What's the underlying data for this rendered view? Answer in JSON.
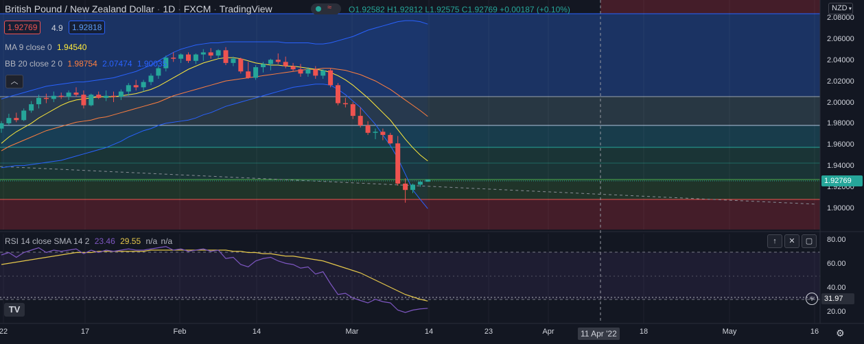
{
  "header": {
    "symbol": "British Pound / New Zealand Dollar",
    "interval": "1D",
    "exchange": "FXCM",
    "source": "TradingView",
    "ohlc": "O1.92582 H1.92812 L1.92575 C1.92769 +0.00187 (+0.10%)",
    "bid": "1.92769",
    "spread": "4.9",
    "ask": "1.92818",
    "ma_label": "MA 9 close 0",
    "ma_value": "1.94540",
    "bb_label": "BB 20 close 2 0",
    "bb_basis": "1.98754",
    "bb_upper": "2.07474",
    "bb_lower": "1.90035",
    "currency": "NZD"
  },
  "rsi_panel": {
    "label": "RSI 14 close SMA 14 2",
    "rsi_value": "23.46",
    "sma_value": "29.55",
    "na1": "n/a",
    "na2": "n/a",
    "last_tag": "31.97"
  },
  "price_tag": "1.92769",
  "crosshair_date": "11 Apr '22",
  "logo": "TV",
  "colors": {
    "up": "#26a69a",
    "down": "#ef5350",
    "ma": "#ffeb3b",
    "bb_basis": "#ff7f3f",
    "bb_band": "#2962ff",
    "rsi": "#7e57c2",
    "rsi_sma": "#e6c84b"
  },
  "chart_data": {
    "type": "candlestick",
    "x_axis_labels": [
      "22",
      "17",
      "Feb",
      "14",
      "Mar",
      "14",
      "23",
      "Apr",
      "18",
      "May",
      "16"
    ],
    "y_axis_labels": [
      "2.08000",
      "2.06000",
      "2.04000",
      "2.02000",
      "2.00000",
      "1.98000",
      "1.96000",
      "1.94000",
      "1.92000",
      "1.90000"
    ],
    "ylim": [
      1.885,
      2.085
    ],
    "candles": [
      [
        1.976,
        1.983,
        1.972,
        1.981
      ],
      [
        1.981,
        1.99,
        1.979,
        1.986
      ],
      [
        1.986,
        1.991,
        1.982,
        1.984
      ],
      [
        1.984,
        1.995,
        1.983,
        1.993
      ],
      [
        1.993,
        2.002,
        1.991,
        1.999
      ],
      [
        1.999,
        2.008,
        1.995,
        2.005
      ],
      [
        2.005,
        2.009,
        2.0,
        2.004
      ],
      [
        2.004,
        2.011,
        2.001,
        2.007
      ],
      [
        2.007,
        2.01,
        2.004,
        2.006
      ],
      [
        2.006,
        2.012,
        2.003,
        2.01
      ],
      [
        2.01,
        2.015,
        2.006,
        2.008
      ],
      [
        2.008,
        2.012,
        1.995,
        1.998
      ],
      [
        1.998,
        2.009,
        1.997,
        2.008
      ],
      [
        2.008,
        2.011,
        2.004,
        2.005
      ],
      [
        2.005,
        2.012,
        2.002,
        2.007
      ],
      [
        2.007,
        2.011,
        2.001,
        2.006
      ],
      [
        2.006,
        2.013,
        2.003,
        2.011
      ],
      [
        2.011,
        2.019,
        2.007,
        2.017
      ],
      [
        2.017,
        2.022,
        2.012,
        2.015
      ],
      [
        2.015,
        2.022,
        2.011,
        2.02
      ],
      [
        2.02,
        2.028,
        2.017,
        2.026
      ],
      [
        2.026,
        2.035,
        2.023,
        2.033
      ],
      [
        2.033,
        2.045,
        2.03,
        2.043
      ],
      [
        2.043,
        2.048,
        2.039,
        2.042
      ],
      [
        2.042,
        2.047,
        2.038,
        2.046
      ],
      [
        2.046,
        2.048,
        2.038,
        2.04
      ],
      [
        2.04,
        2.047,
        2.037,
        2.046
      ],
      [
        2.046,
        2.051,
        2.04,
        2.048
      ],
      [
        2.048,
        2.052,
        2.042,
        2.045
      ],
      [
        2.045,
        2.051,
        2.042,
        2.05
      ],
      [
        2.05,
        2.053,
        2.036,
        2.038
      ],
      [
        2.038,
        2.044,
        2.035,
        2.042
      ],
      [
        2.042,
        2.043,
        2.028,
        2.03
      ],
      [
        2.03,
        2.039,
        2.023,
        2.024
      ],
      [
        2.024,
        2.036,
        2.022,
        2.034
      ],
      [
        2.034,
        2.039,
        2.029,
        2.037
      ],
      [
        2.037,
        2.042,
        2.031,
        2.041
      ],
      [
        2.041,
        2.047,
        2.037,
        2.039
      ],
      [
        2.039,
        2.044,
        2.033,
        2.035
      ],
      [
        2.035,
        2.038,
        2.03,
        2.032
      ],
      [
        2.032,
        2.037,
        2.025,
        2.028
      ],
      [
        2.028,
        2.034,
        2.025,
        2.032
      ],
      [
        2.032,
        2.035,
        2.023,
        2.026
      ],
      [
        2.026,
        2.032,
        2.023,
        2.031
      ],
      [
        2.031,
        2.033,
        2.015,
        2.017
      ],
      [
        2.017,
        2.019,
        1.998,
        2.0
      ],
      [
        2.0,
        2.005,
        1.996,
        1.999
      ],
      [
        1.999,
        2.001,
        1.985,
        1.988
      ],
      [
        1.988,
        1.996,
        1.977,
        1.979
      ],
      [
        1.979,
        1.983,
        1.97,
        1.972
      ],
      [
        1.972,
        1.976,
        1.966,
        1.973
      ],
      [
        1.973,
        1.976,
        1.965,
        1.97
      ],
      [
        1.97,
        1.972,
        1.961,
        1.962
      ],
      [
        1.962,
        1.969,
        1.922,
        1.924
      ],
      [
        1.924,
        1.929,
        1.906,
        1.918
      ],
      [
        1.918,
        1.924,
        1.915,
        1.923
      ],
      [
        1.923,
        1.927,
        1.921,
        1.9258
      ],
      [
        1.9258,
        1.9281,
        1.9257,
        1.9277
      ]
    ],
    "ma9": [
      1.962,
      1.968,
      1.973,
      1.977,
      1.981,
      1.986,
      1.99,
      1.994,
      1.998,
      2.001,
      2.003,
      2.004,
      2.005,
      2.006,
      2.006,
      2.006,
      2.007,
      2.008,
      2.009,
      2.011,
      2.013,
      2.016,
      2.02,
      2.024,
      2.028,
      2.032,
      2.035,
      2.038,
      2.04,
      2.042,
      2.043,
      2.043,
      2.042,
      2.04,
      2.038,
      2.037,
      2.036,
      2.036,
      2.035,
      2.035,
      2.034,
      2.033,
      2.032,
      2.031,
      2.029,
      2.026,
      2.022,
      2.017,
      2.011,
      2.005,
      1.998,
      1.991,
      1.984,
      1.975,
      1.966,
      1.958,
      1.951,
      1.9454
    ],
    "bb_basis": [
      1.955,
      1.959,
      1.962,
      1.965,
      1.968,
      1.971,
      1.974,
      1.976,
      1.978,
      1.98,
      1.982,
      1.983,
      1.984,
      1.986,
      1.987,
      1.989,
      1.991,
      1.993,
      1.995,
      1.997,
      1.999,
      2.001,
      2.004,
      2.007,
      2.009,
      2.011,
      2.013,
      2.015,
      2.017,
      2.019,
      2.021,
      2.022,
      2.023,
      2.024,
      2.025,
      2.026,
      2.027,
      2.028,
      2.029,
      2.03,
      2.031,
      2.032,
      2.032,
      2.033,
      2.033,
      2.032,
      2.031,
      2.029,
      2.027,
      2.024,
      2.021,
      2.017,
      2.013,
      2.008,
      2.003,
      1.998,
      1.993,
      1.9875
    ],
    "bb_upper": [
      2.004,
      2.006,
      2.008,
      2.01,
      2.012,
      2.014,
      2.016,
      2.017,
      2.018,
      2.019,
      2.02,
      2.02,
      2.021,
      2.022,
      2.023,
      2.024,
      2.026,
      2.028,
      2.03,
      2.033,
      2.036,
      2.04,
      2.044,
      2.048,
      2.051,
      2.053,
      2.055,
      2.056,
      2.057,
      2.057,
      2.058,
      2.058,
      2.058,
      2.058,
      2.058,
      2.058,
      2.058,
      2.058,
      2.057,
      2.057,
      2.057,
      2.057,
      2.056,
      2.056,
      2.057,
      2.059,
      2.061,
      2.063,
      2.066,
      2.069,
      2.071,
      2.073,
      2.075,
      2.077,
      2.078,
      2.078,
      2.077,
      2.0747
    ],
    "bb_lower": [
      1.939,
      1.94,
      1.941,
      1.941,
      1.942,
      1.943,
      1.944,
      1.945,
      1.946,
      1.948,
      1.95,
      1.952,
      1.954,
      1.956,
      1.958,
      1.961,
      1.964,
      1.968,
      1.971,
      1.974,
      1.976,
      1.979,
      1.981,
      1.982,
      1.983,
      1.984,
      1.986,
      1.989,
      1.991,
      1.994,
      1.997,
      1.999,
      2.001,
      2.003,
      2.005,
      2.007,
      2.009,
      2.011,
      2.013,
      2.015,
      2.016,
      2.017,
      2.018,
      2.018,
      2.017,
      2.013,
      2.008,
      2.002,
      1.996,
      1.988,
      1.98,
      1.97,
      1.96,
      1.948,
      1.933,
      1.918,
      1.909,
      1.9004
    ],
    "rsi": [
      68,
      70,
      66,
      70,
      72,
      74,
      70,
      72,
      71,
      72,
      73,
      69,
      72,
      70,
      72,
      71,
      72,
      73,
      72,
      72,
      73,
      74,
      75,
      72,
      73,
      71,
      72,
      73,
      71,
      72,
      65,
      66,
      60,
      58,
      63,
      65,
      66,
      63,
      61,
      60,
      57,
      58,
      52,
      54,
      44,
      35,
      36,
      32,
      30,
      28,
      31,
      29,
      28,
      22,
      20,
      22,
      23,
      23.46
    ],
    "rsi_sma": [
      60,
      61,
      62,
      63,
      64,
      65,
      66,
      67,
      68,
      69,
      70,
      70,
      70,
      71,
      71,
      71,
      71,
      71,
      71,
      71,
      72,
      72,
      72,
      72,
      72,
      72,
      72,
      72,
      72,
      72,
      72,
      71,
      71,
      70,
      70,
      69,
      69,
      68,
      67,
      67,
      66,
      65,
      64,
      63,
      61,
      59,
      57,
      55,
      53,
      50,
      47,
      44,
      41,
      38,
      35,
      33,
      31,
      29.55
    ],
    "rsi_axis_labels": [
      "80.00",
      "60.00",
      "40.00",
      "20.00"
    ],
    "rsi_ylim": [
      15,
      85
    ]
  }
}
